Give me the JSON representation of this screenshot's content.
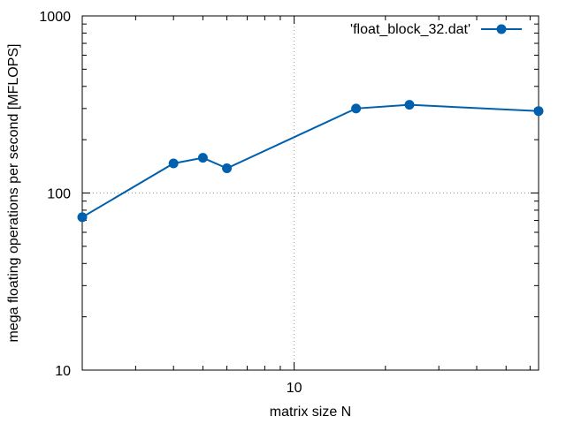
{
  "chart_data": {
    "type": "line",
    "title": "",
    "xlabel": "matrix size N",
    "ylabel": "mega floating operations per second [MFLOPS]",
    "x_scale": "log",
    "y_scale": "log",
    "xlim": [
      2,
      64
    ],
    "ylim": [
      10,
      1000
    ],
    "x_tick_labels": [
      {
        "value": 10,
        "label": "10"
      }
    ],
    "y_tick_labels": [
      {
        "value": 10,
        "label": "10"
      },
      {
        "value": 100,
        "label": "100"
      },
      {
        "value": 1000,
        "label": "1000"
      }
    ],
    "grid": true,
    "legend": "top-right",
    "series": [
      {
        "name": "'float_block_32.dat'",
        "color": "#0060ad",
        "x": [
          2,
          4,
          5,
          6,
          16,
          24,
          64
        ],
        "y": [
          73,
          147,
          158,
          138,
          300,
          315,
          290
        ]
      }
    ]
  }
}
